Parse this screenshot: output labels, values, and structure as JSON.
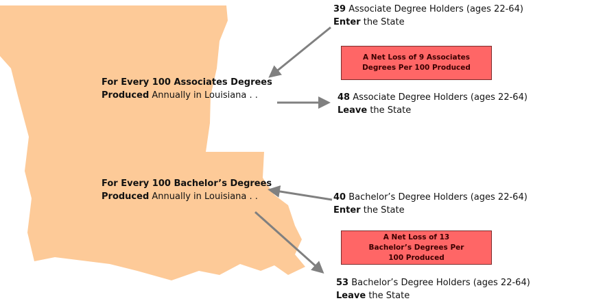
{
  "associates": {
    "source": {
      "bold": "For Every 100 Associates Degrees Produced",
      "rest": "Annually in Louisiana . ."
    },
    "enter": {
      "count": 39,
      "label": "Associate Degree Holders (ages 22-64)",
      "verb": "Enter",
      "rest": "the State"
    },
    "leave": {
      "count": 48,
      "label": "Associate Degree Holders (ages 22-64)",
      "verb": "Leave",
      "rest": "the State"
    },
    "net": "A Net Loss of 9 Associates Degrees Per 100 Produced"
  },
  "bachelors": {
    "source": {
      "bold": "For Every 100 Bachelor’s Degrees Produced",
      "rest": "Annually in Louisiana . ."
    },
    "enter": {
      "count": 40,
      "label": "Bachelor’s Degree Holders (ages 22-64)",
      "verb": "Enter",
      "rest": "the State"
    },
    "leave": {
      "count": 53,
      "label": "Bachelor’s Degree Holders (ages 22-64)",
      "verb": "Leave",
      "rest": "the State"
    },
    "net": "A Net Loss of 13 Bachelor’s Degrees Per 100 Produced"
  }
}
